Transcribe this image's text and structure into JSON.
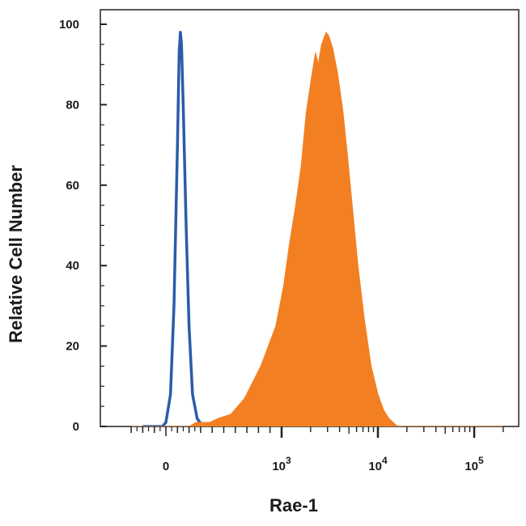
{
  "chart_data": {
    "type": "area",
    "title": "",
    "xlabel": "Rae-1",
    "ylabel": "Relative Cell Number",
    "x_scale": "biexponential",
    "xlim": [
      -400,
      200000
    ],
    "ylim": [
      0,
      105
    ],
    "grid": false,
    "legend": "none",
    "x_tick_labels": [
      {
        "value": 0,
        "base": "0",
        "exp": ""
      },
      {
        "value": 1000,
        "base": "10",
        "exp": "3"
      },
      {
        "value": 10000,
        "base": "10",
        "exp": "4"
      },
      {
        "value": 100000,
        "base": "10",
        "exp": "5"
      }
    ],
    "y_ticks": [
      0,
      20,
      40,
      60,
      80,
      100
    ],
    "series": [
      {
        "style": "outline",
        "color": "#2b5ca8",
        "points": [
          [
            -200,
            0
          ],
          [
            -30,
            0
          ],
          [
            0,
            1
          ],
          [
            40,
            8
          ],
          [
            70,
            30
          ],
          [
            100,
            70
          ],
          [
            115,
            93
          ],
          [
            125,
            98
          ],
          [
            135,
            95
          ],
          [
            150,
            80
          ],
          [
            175,
            50
          ],
          [
            200,
            25
          ],
          [
            230,
            8
          ],
          [
            270,
            2
          ],
          [
            320,
            0
          ],
          [
            400,
            0
          ]
        ]
      },
      {
        "style": "filled",
        "color": "#f28022",
        "points": [
          [
            -300,
            0
          ],
          [
            200,
            0
          ],
          [
            260,
            1
          ],
          [
            380,
            1
          ],
          [
            450,
            2
          ],
          [
            560,
            3
          ],
          [
            680,
            7
          ],
          [
            820,
            15
          ],
          [
            950,
            25
          ],
          [
            1050,
            35
          ],
          [
            1200,
            45
          ],
          [
            1400,
            55
          ],
          [
            1600,
            65
          ],
          [
            1800,
            78
          ],
          [
            2050,
            87
          ],
          [
            2250,
            93
          ],
          [
            2400,
            90
          ],
          [
            2600,
            95
          ],
          [
            2900,
            98
          ],
          [
            3100,
            97
          ],
          [
            3400,
            94
          ],
          [
            3800,
            88
          ],
          [
            4300,
            79
          ],
          [
            4800,
            68
          ],
          [
            5400,
            55
          ],
          [
            6200,
            40
          ],
          [
            7200,
            27
          ],
          [
            8500,
            15
          ],
          [
            10000,
            8
          ],
          [
            11500,
            4
          ],
          [
            13000,
            2
          ],
          [
            16000,
            0
          ],
          [
            200000,
            0
          ]
        ]
      }
    ]
  }
}
